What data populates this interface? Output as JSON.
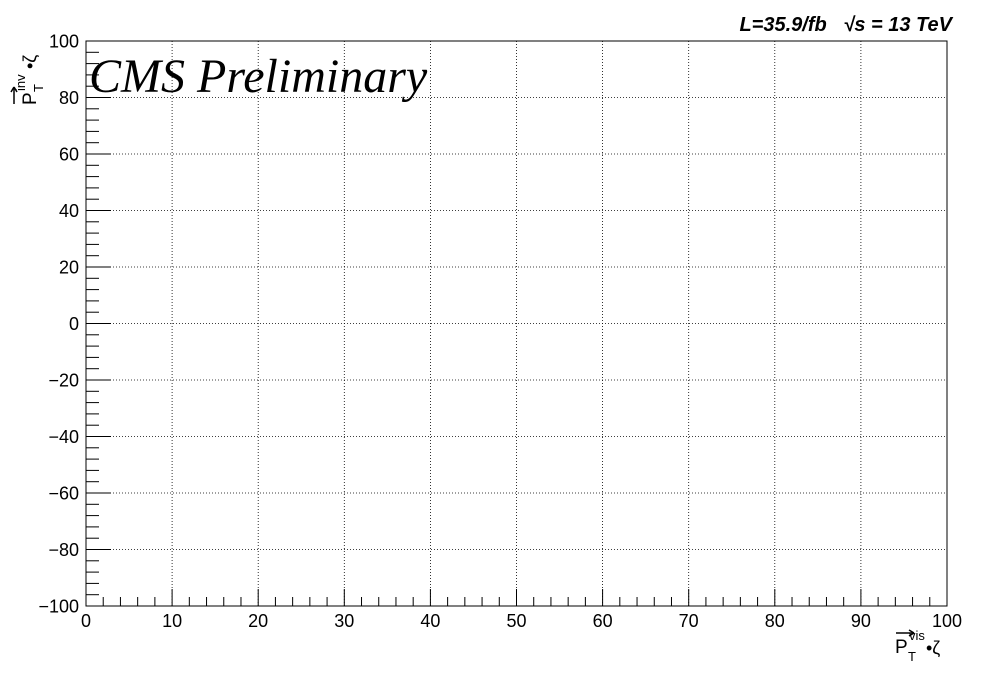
{
  "chart_data": {
    "type": "scatter",
    "title": "",
    "title_left": "CMS Preliminary",
    "title_right": "L=35.9/fb   √s = 13 TeV",
    "xlabel": {
      "main": "P",
      "sub": "T",
      "sup": "vis",
      "suffix": "•ζ"
    },
    "ylabel": {
      "main": "P",
      "sub": "T",
      "sup": "inv",
      "suffix": "•ζ"
    },
    "xlim": [
      0,
      100
    ],
    "ylim": [
      -100,
      100
    ],
    "x_ticks": [
      0,
      10,
      20,
      30,
      40,
      50,
      60,
      70,
      80,
      90,
      100
    ],
    "y_ticks": [
      -100,
      -80,
      -60,
      -40,
      -20,
      0,
      20,
      40,
      60,
      80,
      100
    ],
    "x_tick_labels": [
      "0",
      "10",
      "20",
      "30",
      "40",
      "50",
      "60",
      "70",
      "80",
      "90",
      "100"
    ],
    "y_tick_labels": [
      "−100",
      "−80",
      "−60",
      "−40",
      "−20",
      "0",
      "20",
      "40",
      "60",
      "80",
      "100"
    ],
    "grid": true,
    "points": []
  }
}
